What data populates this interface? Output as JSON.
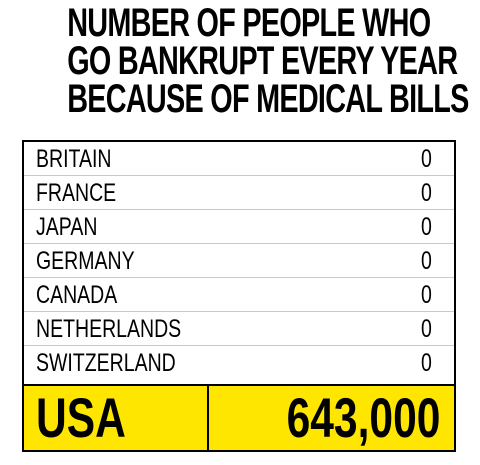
{
  "title_lines": [
    "NUMBER OF PEOPLE WHO",
    "GO BANKRUPT EVERY YEAR",
    "BECAUSE OF MEDICAL BILLS"
  ],
  "chart_data": {
    "type": "table",
    "title": "NUMBER OF PEOPLE WHO GO BANKRUPT EVERY YEAR BECAUSE OF MEDICAL BILLS",
    "rows": [
      {
        "country": "BRITAIN",
        "value": "0"
      },
      {
        "country": "FRANCE",
        "value": "0"
      },
      {
        "country": "JAPAN",
        "value": "0"
      },
      {
        "country": "GERMANY",
        "value": "0"
      },
      {
        "country": "CANADA",
        "value": "0"
      },
      {
        "country": "NETHERLANDS",
        "value": "0"
      },
      {
        "country": "SWITZERLAND",
        "value": "0"
      }
    ],
    "highlight": {
      "country": "USA",
      "value": "643,000"
    },
    "colors": {
      "highlight_background": "#ffe600",
      "text": "#000000",
      "row_divider": "#c9c9c9",
      "border": "#000000"
    }
  }
}
